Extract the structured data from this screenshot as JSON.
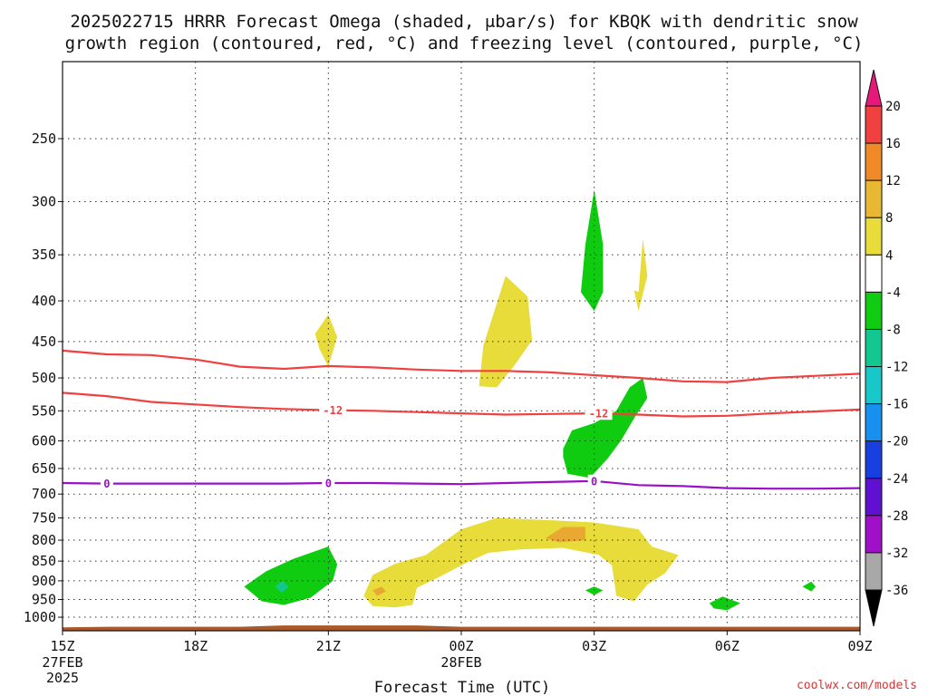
{
  "chart_data": {
    "type": "heatmap",
    "title_line1": "2025022715 HRRR Forecast Omega (shaded, μbar/s) for KBQK with dendritic snow",
    "title_line2": "growth region (contoured, red, °C) and freezing level (contoured, purple, °C)",
    "xlabel": "Forecast Time (UTC)",
    "ylabel": "",
    "y_scale": "log",
    "y_reversed": true,
    "ylim": [
      1040,
      200
    ],
    "xlim": [
      0,
      18
    ],
    "x_ticks": [
      {
        "x": 0,
        "label": "15Z",
        "sub1": "27FEB",
        "sub2": "2025"
      },
      {
        "x": 3,
        "label": "18Z",
        "sub1": "",
        "sub2": ""
      },
      {
        "x": 6,
        "label": "21Z",
        "sub1": "",
        "sub2": ""
      },
      {
        "x": 9,
        "label": "00Z",
        "sub1": "28FEB",
        "sub2": ""
      },
      {
        "x": 12,
        "label": "03Z",
        "sub1": "",
        "sub2": ""
      },
      {
        "x": 15,
        "label": "06Z",
        "sub1": "",
        "sub2": ""
      },
      {
        "x": 18,
        "label": "09Z",
        "sub1": "",
        "sub2": ""
      }
    ],
    "y_ticks": [
      250,
      300,
      350,
      400,
      450,
      500,
      550,
      600,
      650,
      700,
      750,
      800,
      850,
      900,
      950,
      1000
    ],
    "grid": true,
    "colorbar": {
      "labels": [
        "20",
        "16",
        "12",
        "8",
        "4",
        "-4",
        "-8",
        "-12",
        "-16",
        "-20",
        "-24",
        "-28",
        "-32",
        "-36"
      ],
      "colors": [
        "#e8187a",
        "#f04040",
        "#f08a28",
        "#e8b832",
        "#e8dc3a",
        "#ffffff",
        "#10cc10",
        "#12c890",
        "#18c8c8",
        "#1890f0",
        "#1840e0",
        "#6010d0",
        "#a010c8",
        "#a8a8a8",
        "#000000"
      ],
      "placement": "right"
    },
    "contours": [
      {
        "name": "dgz-upper",
        "color": "#f04040",
        "label": "",
        "points": [
          [
            0,
            462
          ],
          [
            1,
            467
          ],
          [
            2,
            468
          ],
          [
            3,
            474
          ],
          [
            4,
            484
          ],
          [
            5,
            487
          ],
          [
            6,
            483
          ],
          [
            7,
            485
          ],
          [
            8,
            488
          ],
          [
            9,
            490
          ],
          [
            10,
            490
          ],
          [
            11,
            492
          ],
          [
            12,
            496
          ],
          [
            13,
            500
          ],
          [
            14,
            505
          ],
          [
            15,
            506
          ],
          [
            16,
            500
          ],
          [
            17,
            497
          ],
          [
            18,
            494
          ]
        ]
      },
      {
        "name": "dgz-lower",
        "color": "#f04040",
        "label": "-12",
        "label_x": [
          6.1,
          12.1
        ],
        "points": [
          [
            0,
            522
          ],
          [
            1,
            527
          ],
          [
            2,
            536
          ],
          [
            3,
            540
          ],
          [
            4,
            544
          ],
          [
            5,
            547
          ],
          [
            6,
            549
          ],
          [
            7,
            550
          ],
          [
            8,
            552
          ],
          [
            9,
            554
          ],
          [
            10,
            556
          ],
          [
            11,
            555
          ],
          [
            12,
            554
          ],
          [
            13,
            556
          ],
          [
            14,
            559
          ],
          [
            15,
            558
          ],
          [
            16,
            554
          ],
          [
            17,
            551
          ],
          [
            18,
            548
          ]
        ]
      },
      {
        "name": "freezing-level",
        "color": "#9a10c8",
        "label": "0",
        "label_x": [
          1,
          6,
          12
        ],
        "points": [
          [
            0,
            678
          ],
          [
            1,
            679
          ],
          [
            2,
            679
          ],
          [
            3,
            679
          ],
          [
            4,
            679
          ],
          [
            5,
            679
          ],
          [
            6,
            678
          ],
          [
            7,
            678
          ],
          [
            8,
            679
          ],
          [
            9,
            680
          ],
          [
            10,
            678
          ],
          [
            11,
            676
          ],
          [
            12,
            674
          ],
          [
            13,
            682
          ],
          [
            14,
            684
          ],
          [
            15,
            688
          ],
          [
            16,
            689
          ],
          [
            17,
            689
          ],
          [
            18,
            688
          ]
        ]
      }
    ],
    "shaded_regions": [
      {
        "name": "rise-small-21z",
        "fill": "#e8dc3a",
        "value_range": "4 to 8",
        "points": [
          [
            5.7,
            440
          ],
          [
            6.0,
            416
          ],
          [
            6.2,
            444
          ],
          [
            6.0,
            484
          ],
          [
            5.8,
            460
          ]
        ]
      },
      {
        "name": "rise-00z-upper",
        "fill": "#e8dc3a",
        "value_range": "4 to 8",
        "points": [
          [
            9.4,
            512
          ],
          [
            9.5,
            455
          ],
          [
            10.0,
            372
          ],
          [
            10.5,
            395
          ],
          [
            10.6,
            448
          ],
          [
            10.2,
            482
          ],
          [
            9.8,
            514
          ]
        ]
      },
      {
        "name": "rise-04z",
        "fill": "#e8dc3a",
        "value_range": "4 to 8",
        "points": [
          [
            13.0,
            390
          ],
          [
            13.1,
            334
          ],
          [
            13.2,
            372
          ],
          [
            13.0,
            412
          ],
          [
            12.9,
            388
          ]
        ]
      },
      {
        "name": "rise-lower-band",
        "fill": "#e8dc3a",
        "value_range": "4 to 8",
        "points": [
          [
            7.0,
            968
          ],
          [
            6.8,
            940
          ],
          [
            7.0,
            885
          ],
          [
            7.5,
            857
          ],
          [
            8.2,
            835
          ],
          [
            9.0,
            775
          ],
          [
            9.8,
            750
          ],
          [
            11.0,
            755
          ],
          [
            12.0,
            760
          ],
          [
            13.0,
            775
          ],
          [
            13.3,
            815
          ],
          [
            13.9,
            835
          ],
          [
            13.6,
            880
          ],
          [
            13.2,
            910
          ],
          [
            12.9,
            955
          ],
          [
            12.5,
            940
          ],
          [
            12.4,
            860
          ],
          [
            12.1,
            835
          ],
          [
            11.3,
            818
          ],
          [
            10.3,
            822
          ],
          [
            9.6,
            830
          ],
          [
            9.1,
            855
          ],
          [
            8.5,
            890
          ],
          [
            8.0,
            918
          ],
          [
            7.9,
            965
          ],
          [
            7.5,
            972
          ]
        ]
      },
      {
        "name": "rise-strong-core",
        "fill": "#e8a832",
        "value_range": "8 to 12",
        "points": [
          [
            10.9,
            795
          ],
          [
            11.3,
            770
          ],
          [
            11.8,
            770
          ],
          [
            11.8,
            800
          ],
          [
            11.2,
            805
          ]
        ]
      },
      {
        "name": "rise-spot-22z",
        "fill": "#e8a832",
        "value_range": "8 to 12",
        "points": [
          [
            7.0,
            925
          ],
          [
            7.2,
            915
          ],
          [
            7.3,
            928
          ],
          [
            7.1,
            940
          ]
        ]
      },
      {
        "name": "sink-03z-upper",
        "fill": "#10cc10",
        "value_range": "-4 to -8",
        "points": [
          [
            11.7,
            390
          ],
          [
            11.8,
            340
          ],
          [
            12.0,
            290
          ],
          [
            12.2,
            340
          ],
          [
            12.2,
            390
          ],
          [
            12.0,
            412
          ]
        ]
      },
      {
        "name": "sink-03z-mid",
        "fill": "#10cc10",
        "value_range": "-4 to -8",
        "points": [
          [
            11.3,
            614
          ],
          [
            11.5,
            582
          ],
          [
            12.0,
            570
          ],
          [
            12.5,
            550
          ],
          [
            12.8,
            514
          ],
          [
            13.1,
            500
          ],
          [
            13.2,
            530
          ],
          [
            12.9,
            562
          ],
          [
            12.6,
            600
          ],
          [
            12.3,
            632
          ],
          [
            11.9,
            668
          ],
          [
            11.4,
            660
          ],
          [
            11.3,
            628
          ]
        ]
      },
      {
        "name": "sink-20z",
        "fill": "#10cc10",
        "value_range": "-4 to -8",
        "points": [
          [
            4.1,
            915
          ],
          [
            4.6,
            875
          ],
          [
            5.2,
            845
          ],
          [
            6.0,
            815
          ],
          [
            6.2,
            858
          ],
          [
            6.1,
            900
          ],
          [
            5.6,
            945
          ],
          [
            5.0,
            965
          ],
          [
            4.5,
            955
          ]
        ]
      },
      {
        "name": "sink-20z-core",
        "fill": "#12c890",
        "value_range": "-8 to -12",
        "points": [
          [
            4.8,
            915
          ],
          [
            4.95,
            900
          ],
          [
            5.1,
            915
          ],
          [
            4.95,
            932
          ]
        ]
      },
      {
        "name": "sink-02z",
        "fill": "#10cc10",
        "value_range": "-4 to -8",
        "points": [
          [
            11.8,
            925
          ],
          [
            12.0,
            915
          ],
          [
            12.2,
            925
          ],
          [
            12.0,
            938
          ]
        ]
      },
      {
        "name": "sink-05z",
        "fill": "#10cc10",
        "value_range": "-4 to -8",
        "points": [
          [
            14.6,
            960
          ],
          [
            14.9,
            942
          ],
          [
            15.3,
            960
          ],
          [
            15.0,
            980
          ],
          [
            14.7,
            975
          ]
        ]
      },
      {
        "name": "sink-08z",
        "fill": "#10cc10",
        "value_range": "-4 to -8",
        "points": [
          [
            16.7,
            915
          ],
          [
            16.9,
            902
          ],
          [
            17.0,
            915
          ],
          [
            16.9,
            928
          ]
        ]
      }
    ],
    "terrain": {
      "fill": "#a85a2c",
      "points": [
        [
          0,
          1030
        ],
        [
          1,
          1028
        ],
        [
          2,
          1028
        ],
        [
          4,
          1028
        ],
        [
          5,
          1024
        ],
        [
          8,
          1024
        ],
        [
          9,
          1028
        ],
        [
          12,
          1028
        ],
        [
          18,
          1028
        ]
      ]
    }
  },
  "source": "coolwx.com/models"
}
